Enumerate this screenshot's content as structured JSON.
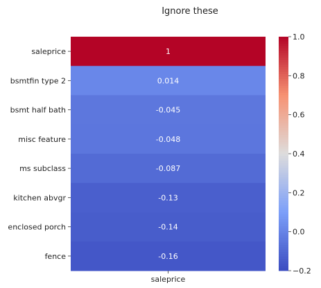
{
  "chart_data": {
    "type": "heatmap",
    "title": "Ignore these",
    "rows": [
      "saleprice",
      "bsmtfin type 2",
      "bsmt half bath",
      "misc feature",
      "ms subclass",
      "kitchen abvgr",
      "enclosed porch",
      "fence"
    ],
    "columns": [
      "saleprice"
    ],
    "values": [
      1,
      0.014,
      -0.045,
      -0.048,
      -0.087,
      -0.13,
      -0.14,
      -0.16
    ],
    "value_labels": [
      "1",
      "0.014",
      "-0.045",
      "-0.048",
      "-0.087",
      "-0.13",
      "-0.14",
      "-0.16"
    ],
    "colormap": "coolwarm",
    "color_range": [
      -0.2,
      1.0
    ],
    "colorbar_ticks": [
      "1.0",
      "0.8",
      "0.6",
      "0.4",
      "0.2",
      "0.0",
      "−0.2"
    ],
    "colorbar_tick_values": [
      1.0,
      0.8,
      0.6,
      0.4,
      0.2,
      0.0,
      -0.2
    ],
    "colors": {
      "low": "#3b4cc0",
      "mid": "#dddddd",
      "high": "#b40426",
      "cell_text": "#ffffff"
    }
  }
}
